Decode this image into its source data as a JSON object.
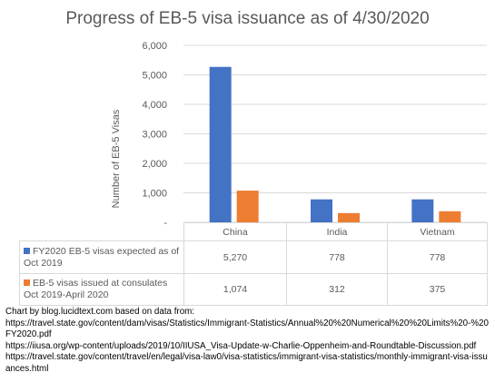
{
  "chart_data": {
    "type": "bar",
    "title": "Progress of EB-5 visa issuance as of 4/30/2020",
    "ylabel": "Number  of  EB-5  Visas",
    "xlabel": "",
    "ylim": [
      0,
      6000
    ],
    "yticks": [
      "-",
      "1,000",
      "2,000",
      "3,000",
      "4,000",
      "5,000",
      "6,000"
    ],
    "ytick_values": [
      0,
      1000,
      2000,
      3000,
      4000,
      5000,
      6000
    ],
    "grid": true,
    "categories": [
      "China",
      "India",
      "Vietnam"
    ],
    "series": [
      {
        "name": "FY2020 EB-5 visas expected as of Oct 2019",
        "color": "#4472c4",
        "values": [
          5270,
          778,
          778
        ],
        "labels": [
          "5,270",
          "778",
          "778"
        ]
      },
      {
        "name": "EB-5 visas issued at consulates Oct 2019-April 2020",
        "color": "#ed7d31",
        "values": [
          1074,
          312,
          375
        ],
        "labels": [
          "1,074",
          "312",
          "375"
        ]
      }
    ],
    "legend": "data-table"
  },
  "source": {
    "heading": "Chart by blog.lucidtext.com based on data from:",
    "links": [
      "https://travel.state.gov/content/dam/visas/Statistics/Immigrant-Statistics/Annual%20%20Numerical%20%20Limits%20-%20FY2020.pdf",
      "https://iiusa.org/wp-content/uploads/2019/10/IIUSA_Visa-Update-w-Charlie-Oppenheim-and-Roundtable-Discussion.pdf",
      "https://travel.state.gov/content/travel/en/legal/visa-law0/visa-statistics/immigrant-visa-statistics/monthly-immigrant-visa-issuances.html"
    ]
  }
}
